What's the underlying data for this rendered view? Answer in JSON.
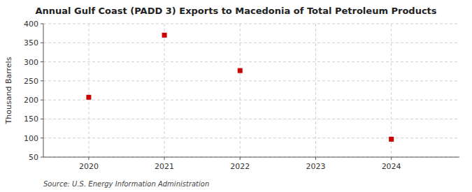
{
  "chart_data": {
    "type": "scatter",
    "title": "Annual Gulf Coast (PADD 3) Exports to Macedonia of Total Petroleum Products",
    "y_label": "Thousand Barrels",
    "source": "Source: U.S. Energy Information Administration",
    "x": [
      2020,
      2021,
      2022,
      2024
    ],
    "values": [
      207,
      370,
      277,
      97
    ],
    "color": "#cc0000",
    "marker": "square",
    "xlim": [
      2019.4,
      2024.9
    ],
    "ylim": [
      50,
      400
    ],
    "xticks": [
      2020,
      2021,
      2022,
      2023,
      2024
    ],
    "yticks": [
      50,
      100,
      150,
      200,
      250,
      300,
      350,
      400
    ],
    "grid": true
  }
}
